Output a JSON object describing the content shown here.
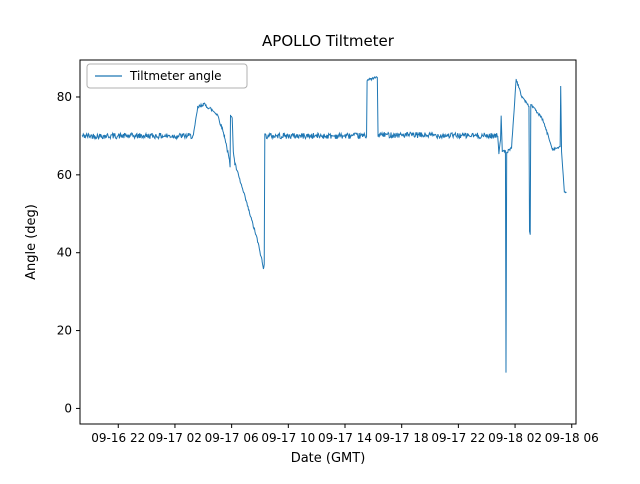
{
  "chart_data": {
    "type": "line",
    "title": "APOLLO Tiltmeter",
    "xlabel": "Date (GMT)",
    "ylabel": "Angle (deg)",
    "legend": {
      "entries": [
        "Tiltmeter angle"
      ],
      "position": "upper left"
    },
    "grid": false,
    "line_color": "#1f77b4",
    "axis_color": "#000000",
    "legend_border_color": "#b0b0b0",
    "x_units": "hours since 09-16 00:00 GMT",
    "xlim": [
      19.3,
      54.3
    ],
    "ylim": [
      -4,
      89.5
    ],
    "xticks": [
      {
        "v": 22,
        "label": "09-16 22"
      },
      {
        "v": 26,
        "label": "09-17 02"
      },
      {
        "v": 30,
        "label": "09-17 06"
      },
      {
        "v": 34,
        "label": "09-17 10"
      },
      {
        "v": 38,
        "label": "09-17 14"
      },
      {
        "v": 42,
        "label": "09-17 18"
      },
      {
        "v": 46,
        "label": "09-17 22"
      },
      {
        "v": 50,
        "label": "09-18 02"
      },
      {
        "v": 54,
        "label": "09-18 06"
      }
    ],
    "yticks": [
      {
        "v": 0,
        "label": "0"
      },
      {
        "v": 20,
        "label": "20"
      },
      {
        "v": 40,
        "label": "40"
      },
      {
        "v": 60,
        "label": "60"
      },
      {
        "v": 80,
        "label": "80"
      }
    ],
    "series": [
      {
        "name": "Tiltmeter angle",
        "segment_format": [
          "t_start",
          "value_start",
          "t_end",
          "value_end",
          "noise_amplitude_deg"
        ],
        "segments": [
          [
            19.45,
            70,
            27.3,
            70,
            0.75
          ],
          [
            27.3,
            70,
            27.6,
            77.2,
            0.4
          ],
          [
            27.6,
            77.2,
            28.0,
            78.2,
            0.45
          ],
          [
            28.0,
            78.2,
            28.5,
            77.0,
            0.45
          ],
          [
            28.5,
            77.0,
            29.0,
            75.5,
            0.45
          ],
          [
            29.0,
            75.5,
            29.5,
            70.0,
            0.5
          ],
          [
            29.5,
            70.0,
            29.85,
            63.5,
            0.5
          ],
          [
            29.85,
            63.5,
            29.89,
            62.0,
            0.2
          ],
          [
            29.89,
            62.0,
            29.92,
            75.5,
            0.1
          ],
          [
            29.92,
            75.5,
            30.04,
            74.5,
            0.3
          ],
          [
            30.04,
            74.5,
            30.12,
            66.0,
            0.2
          ],
          [
            30.12,
            66.0,
            30.22,
            63.0,
            0.3
          ],
          [
            30.22,
            63.0,
            31.0,
            53.5,
            0.45
          ],
          [
            31.0,
            53.5,
            31.8,
            43.5,
            0.45
          ],
          [
            31.8,
            43.5,
            32.15,
            37.8,
            0.4
          ],
          [
            32.15,
            37.8,
            32.24,
            35.8,
            0.3
          ],
          [
            32.24,
            35.8,
            32.3,
            37.2,
            0.3
          ],
          [
            32.3,
            37.2,
            32.34,
            70.0,
            0.1
          ],
          [
            32.34,
            70.0,
            39.52,
            70.0,
            0.75
          ],
          [
            39.52,
            70.0,
            39.56,
            84.3,
            0.1
          ],
          [
            39.56,
            84.3,
            40.28,
            85.1,
            0.3
          ],
          [
            40.28,
            85.1,
            40.33,
            70.3,
            0.1
          ],
          [
            40.33,
            70.3,
            48.78,
            70.0,
            0.75
          ],
          [
            48.78,
            70.0,
            48.86,
            65.6,
            0.3
          ],
          [
            48.86,
            65.6,
            48.98,
            69.5,
            0.4
          ],
          [
            48.98,
            69.5,
            49.02,
            75.3,
            0.15
          ],
          [
            49.02,
            75.3,
            49.1,
            65.8,
            0.2
          ],
          [
            49.1,
            65.8,
            49.32,
            66.2,
            0.35
          ],
          [
            49.32,
            66.2,
            49.36,
            9.3,
            0.1
          ],
          [
            49.36,
            9.3,
            49.41,
            65.8,
            0.1
          ],
          [
            49.41,
            65.8,
            49.75,
            67.0,
            0.35
          ],
          [
            49.75,
            67.0,
            50.08,
            84.6,
            0.3
          ],
          [
            50.08,
            84.6,
            50.45,
            80.3,
            0.3
          ],
          [
            50.45,
            80.3,
            50.98,
            77.6,
            0.3
          ],
          [
            50.98,
            77.6,
            51.02,
            45.6,
            0.1
          ],
          [
            51.02,
            45.6,
            51.07,
            44.6,
            0.2
          ],
          [
            51.07,
            44.6,
            51.11,
            78.2,
            0.1
          ],
          [
            51.11,
            78.2,
            51.95,
            74.2,
            0.35
          ],
          [
            51.95,
            74.2,
            52.65,
            66.6,
            0.35
          ],
          [
            52.65,
            66.6,
            53.18,
            67.1,
            0.3
          ],
          [
            53.18,
            67.1,
            53.22,
            82.8,
            0.1
          ],
          [
            53.22,
            82.8,
            53.28,
            66.0,
            0.1
          ],
          [
            53.28,
            66.0,
            53.48,
            55.6,
            0.2
          ],
          [
            53.48,
            55.6,
            53.62,
            55.2,
            0.25
          ]
        ]
      }
    ]
  }
}
